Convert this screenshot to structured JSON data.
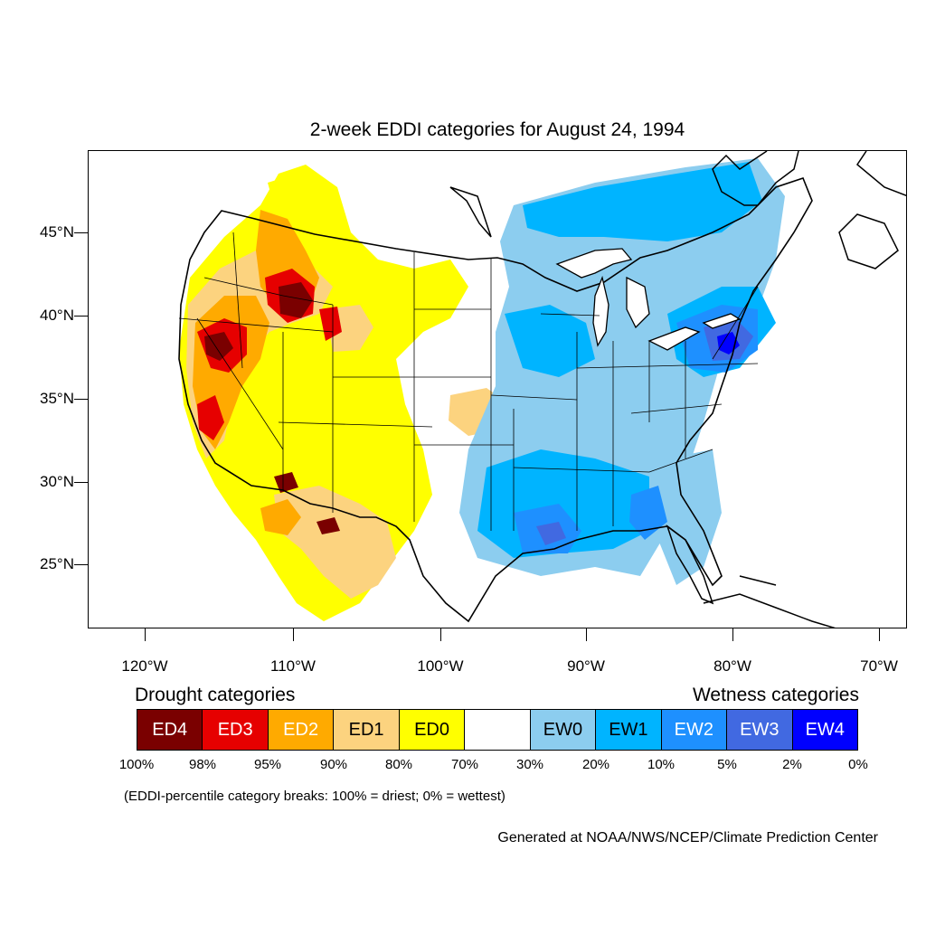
{
  "title": "2-week EDDI categories for August 24, 1994",
  "map": {
    "extent": {
      "lon": [
        -125,
        -68.5
      ],
      "lat": [
        21,
        49.5
      ]
    },
    "lat_ticks": [
      {
        "value": 45,
        "label": "45°N"
      },
      {
        "value": 40,
        "label": "40°N"
      },
      {
        "value": 35,
        "label": "35°N"
      },
      {
        "value": 30,
        "label": "30°N"
      },
      {
        "value": 25,
        "label": "25°N"
      }
    ],
    "lon_ticks": [
      {
        "value": -120,
        "label": "120°W"
      },
      {
        "value": -110,
        "label": "110°W"
      },
      {
        "value": -100,
        "label": "100°W"
      },
      {
        "value": -90,
        "label": "90°W"
      },
      {
        "value": -80,
        "label": "80°W"
      },
      {
        "value": -70,
        "label": "70°W"
      }
    ]
  },
  "legend": {
    "drought_heading": "Drought categories",
    "wetness_heading": "Wetness categories",
    "categories": [
      {
        "label": "ED4",
        "color": "#7a0000",
        "text_color": "#ffffff"
      },
      {
        "label": "ED3",
        "color": "#e60000",
        "text_color": "#ffffff"
      },
      {
        "label": "ED2",
        "color": "#ffaa00",
        "text_color": "#ffffff"
      },
      {
        "label": "ED1",
        "color": "#fcd37f",
        "text_color": "#000000"
      },
      {
        "label": "ED0",
        "color": "#ffff00",
        "text_color": "#000000"
      },
      {
        "label": "",
        "color": "#ffffff",
        "text_color": "#000000"
      },
      {
        "label": "EW0",
        "color": "#8ccdef",
        "text_color": "#000000"
      },
      {
        "label": "EW1",
        "color": "#00b4ff",
        "text_color": "#000000"
      },
      {
        "label": "EW2",
        "color": "#1e90ff",
        "text_color": "#ffffff"
      },
      {
        "label": "EW3",
        "color": "#4169e1",
        "text_color": "#ffffff"
      },
      {
        "label": "EW4",
        "color": "#0000ff",
        "text_color": "#ffffff"
      }
    ],
    "breaks": [
      "100%",
      "98%",
      "95%",
      "90%",
      "80%",
      "70%",
      "30%",
      "20%",
      "10%",
      "5%",
      "2%",
      "0%"
    ]
  },
  "note": "(EDDI-percentile category breaks: 100% = driest; 0% = wettest)",
  "credit": "Generated at NOAA/NWS/NCEP/Climate Prediction Center"
}
